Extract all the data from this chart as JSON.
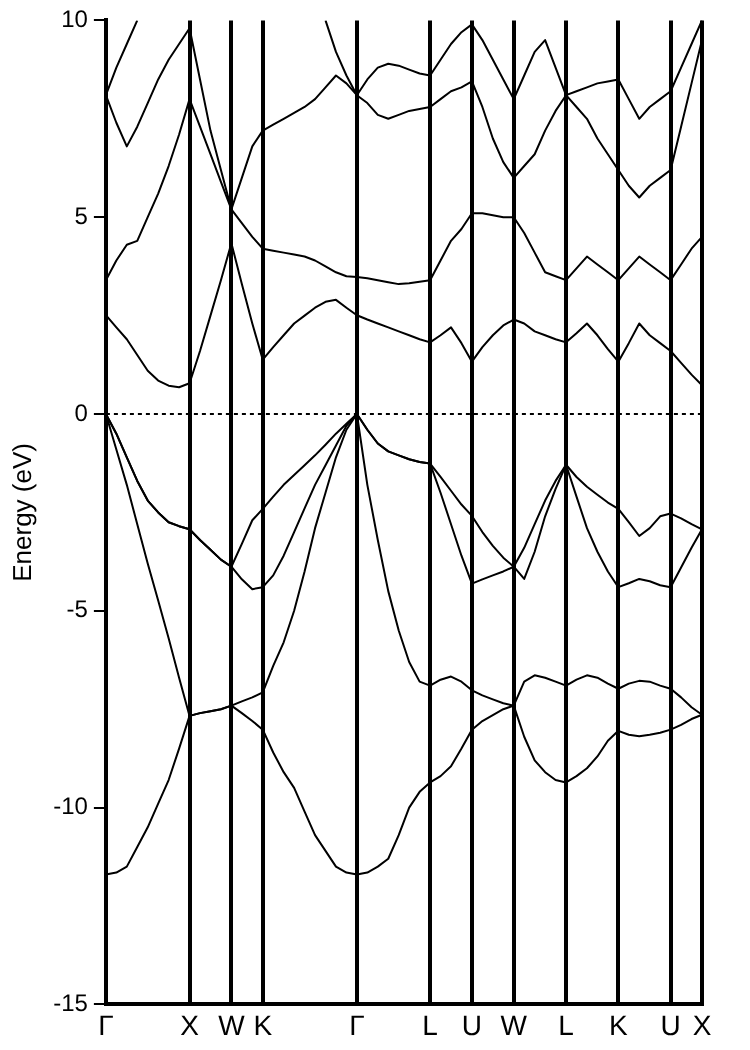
{
  "chart_data": {
    "type": "line",
    "ylabel": "Energy (eV)",
    "marker": "none",
    "grid": "x",
    "categories": [
      "Γ",
      null,
      null,
      null,
      null,
      null,
      null,
      null,
      "X",
      null,
      null,
      null,
      "W",
      null,
      null,
      "K",
      null,
      null,
      null,
      null,
      null,
      null,
      null,
      null,
      "Γ",
      null,
      null,
      null,
      null,
      null,
      null,
      "L",
      null,
      null,
      null,
      "U",
      null,
      null,
      null,
      "W",
      null,
      null,
      null,
      null,
      "L",
      null,
      null,
      null,
      null,
      "K",
      null,
      null,
      null,
      null,
      "U",
      null,
      null,
      "X"
    ],
    "ylim": [
      -15,
      10
    ],
    "yticks": [
      -15,
      -10,
      -5,
      0,
      5,
      10
    ],
    "ref_lines": [
      {
        "axis": "y",
        "value": 0,
        "color": "#000000",
        "line_style": "dotted"
      }
    ],
    "series": [
      {
        "color": "#000000",
        "values": [
          -11.7,
          -11.65,
          -11.5,
          -11.0,
          -10.5,
          -9.9,
          -9.3,
          -8.5,
          -7.67,
          -7.6,
          -7.55,
          -7.5,
          -7.41,
          -7.6,
          -7.8,
          -8.02,
          -8.6,
          -9.1,
          -9.5,
          -10.1,
          -10.7,
          -11.1,
          -11.5,
          -11.65,
          -11.7,
          -11.65,
          -11.5,
          -11.3,
          -10.7,
          -10.0,
          -9.6,
          -9.36,
          -9.2,
          -8.95,
          -8.5,
          -8.02,
          -7.8,
          -7.65,
          -7.5,
          -7.41,
          -8.2,
          -8.8,
          -9.1,
          -9.3,
          -9.36,
          -9.2,
          -9.0,
          -8.7,
          -8.3,
          -8.05,
          -8.15,
          -8.19,
          -8.15,
          -8.1,
          -8.02,
          -7.9,
          -7.75,
          -7.64
        ]
      },
      {
        "color": "#000000",
        "values": [
          0,
          -0.9,
          -1.8,
          -2.8,
          -3.8,
          -4.74,
          -5.7,
          -6.7,
          -7.67,
          -7.6,
          -7.55,
          -7.5,
          -7.41,
          -7.3,
          -7.2,
          -7.07,
          -6.4,
          -5.8,
          -5.0,
          -4.0,
          -2.9,
          -2.0,
          -1.1,
          -0.4,
          0,
          -1.8,
          -3.2,
          -4.5,
          -5.5,
          -6.3,
          -6.8,
          -6.9,
          -6.75,
          -6.67,
          -6.8,
          -7.02,
          -7.15,
          -7.25,
          -7.35,
          -7.41,
          -6.8,
          -6.64,
          -6.7,
          -6.8,
          -6.9,
          -6.75,
          -6.64,
          -6.7,
          -6.85,
          -6.98,
          -6.85,
          -6.78,
          -6.8,
          -6.9,
          -6.98,
          -7.2,
          -7.45,
          -7.64
        ]
      },
      {
        "color": "#000000",
        "values": [
          0,
          -0.5,
          -1.1,
          -1.7,
          -2.2,
          -2.5,
          -2.75,
          -2.85,
          -2.93,
          -3.2,
          -3.45,
          -3.7,
          -3.88,
          -4.2,
          -4.45,
          -4.4,
          -4.1,
          -3.6,
          -3.0,
          -2.4,
          -1.8,
          -1.3,
          -0.8,
          -0.3,
          0,
          -0.4,
          -0.75,
          -0.95,
          -1.05,
          -1.15,
          -1.22,
          -1.26,
          -2.0,
          -2.8,
          -3.6,
          -4.31,
          -4.2,
          -4.1,
          -4.0,
          -3.88,
          -3.4,
          -2.8,
          -2.2,
          -1.7,
          -1.29,
          -2.1,
          -2.9,
          -3.5,
          -4.0,
          -4.4,
          -4.3,
          -4.19,
          -4.25,
          -4.35,
          -4.4,
          -3.9,
          -3.4,
          -2.93
        ]
      },
      {
        "color": "#000000",
        "values": [
          0,
          -0.5,
          -1.1,
          -1.7,
          -2.2,
          -2.5,
          -2.75,
          -2.85,
          -2.93,
          -3.2,
          -3.45,
          -3.7,
          -3.88,
          -3.3,
          -2.7,
          -2.41,
          -2.1,
          -1.8,
          -1.55,
          -1.3,
          -1.05,
          -0.78,
          -0.5,
          -0.25,
          0,
          -0.4,
          -0.75,
          -0.95,
          -1.05,
          -1.15,
          -1.22,
          -1.26,
          -1.6,
          -1.95,
          -2.3,
          -2.59,
          -3.0,
          -3.35,
          -3.65,
          -3.88,
          -4.19,
          -3.5,
          -2.6,
          -1.9,
          -1.29,
          -1.6,
          -1.85,
          -2.05,
          -2.25,
          -2.41,
          -2.75,
          -3.1,
          -2.9,
          -2.6,
          -2.53,
          -2.65,
          -2.8,
          -2.93
        ]
      },
      {
        "color": "#000000",
        "values": [
          2.51,
          2.2,
          1.9,
          1.5,
          1.1,
          0.85,
          0.72,
          0.68,
          0.78,
          1.6,
          2.5,
          3.4,
          4.34,
          3.3,
          2.3,
          1.38,
          1.7,
          2.0,
          2.3,
          2.5,
          2.7,
          2.85,
          2.9,
          2.7,
          2.51,
          2.4,
          2.3,
          2.2,
          2.1,
          2.0,
          1.9,
          1.82,
          2.0,
          2.2,
          1.8,
          1.33,
          1.7,
          2.0,
          2.25,
          2.4,
          2.3,
          2.1,
          2.0,
          1.9,
          1.82,
          2.05,
          2.3,
          2.0,
          1.65,
          1.33,
          1.8,
          2.3,
          2.0,
          1.8,
          1.6,
          1.3,
          1.0,
          0.73
        ]
      },
      {
        "color": "#000000",
        "values": [
          3.4,
          3.9,
          4.3,
          4.4,
          5.0,
          5.6,
          6.3,
          7.1,
          8.0,
          7.3,
          6.6,
          5.9,
          5.2,
          4.85,
          4.5,
          4.2,
          4.15,
          4.1,
          4.05,
          4.0,
          3.9,
          3.75,
          3.6,
          3.5,
          3.48,
          3.45,
          3.4,
          3.35,
          3.3,
          3.32,
          3.36,
          3.4,
          3.9,
          4.4,
          4.7,
          5.1,
          5.1,
          5.05,
          5.0,
          5.0,
          4.6,
          4.1,
          3.6,
          3.5,
          3.4,
          3.7,
          4.0,
          3.8,
          3.6,
          3.4,
          3.7,
          4.0,
          3.8,
          3.6,
          3.4,
          3.8,
          4.2,
          4.5
        ]
      },
      {
        "color": "#000000",
        "values": [
          8.1,
          7.4,
          6.8,
          7.3,
          7.9,
          8.5,
          9.0,
          9.4,
          9.8,
          8.5,
          7.2,
          6.2,
          5.2,
          6.0,
          6.8,
          7.2,
          7.35,
          7.5,
          7.65,
          7.8,
          8.0,
          8.3,
          8.6,
          8.4,
          8.1,
          7.9,
          7.6,
          7.5,
          7.6,
          7.7,
          7.75,
          7.8,
          8.0,
          8.2,
          8.3,
          8.45,
          7.8,
          7.0,
          6.4,
          6.0,
          6.3,
          6.6,
          7.2,
          7.7,
          8.1,
          7.8,
          7.5,
          7.0,
          6.6,
          6.2,
          5.8,
          5.5,
          5.8,
          6.0,
          6.2,
          7.3,
          8.4,
          9.5
        ]
      },
      {
        "color": "#000000",
        "values": [
          8.1,
          8.8,
          9.4,
          10,
          null,
          null,
          null,
          null,
          null,
          null,
          null,
          null,
          null,
          null,
          null,
          null,
          null,
          null,
          null,
          null,
          null,
          10,
          9.2,
          8.6,
          8.1,
          8.5,
          8.8,
          8.9,
          8.85,
          8.75,
          8.65,
          8.6,
          9.0,
          9.4,
          9.7,
          9.9,
          9.5,
          9.0,
          8.5,
          8.0,
          8.6,
          9.2,
          9.5,
          8.8,
          8.1,
          8.2,
          8.3,
          8.4,
          8.45,
          8.5,
          8.0,
          7.5,
          7.8,
          8.0,
          8.2,
          8.8,
          9.4,
          10
        ]
      }
    ]
  }
}
